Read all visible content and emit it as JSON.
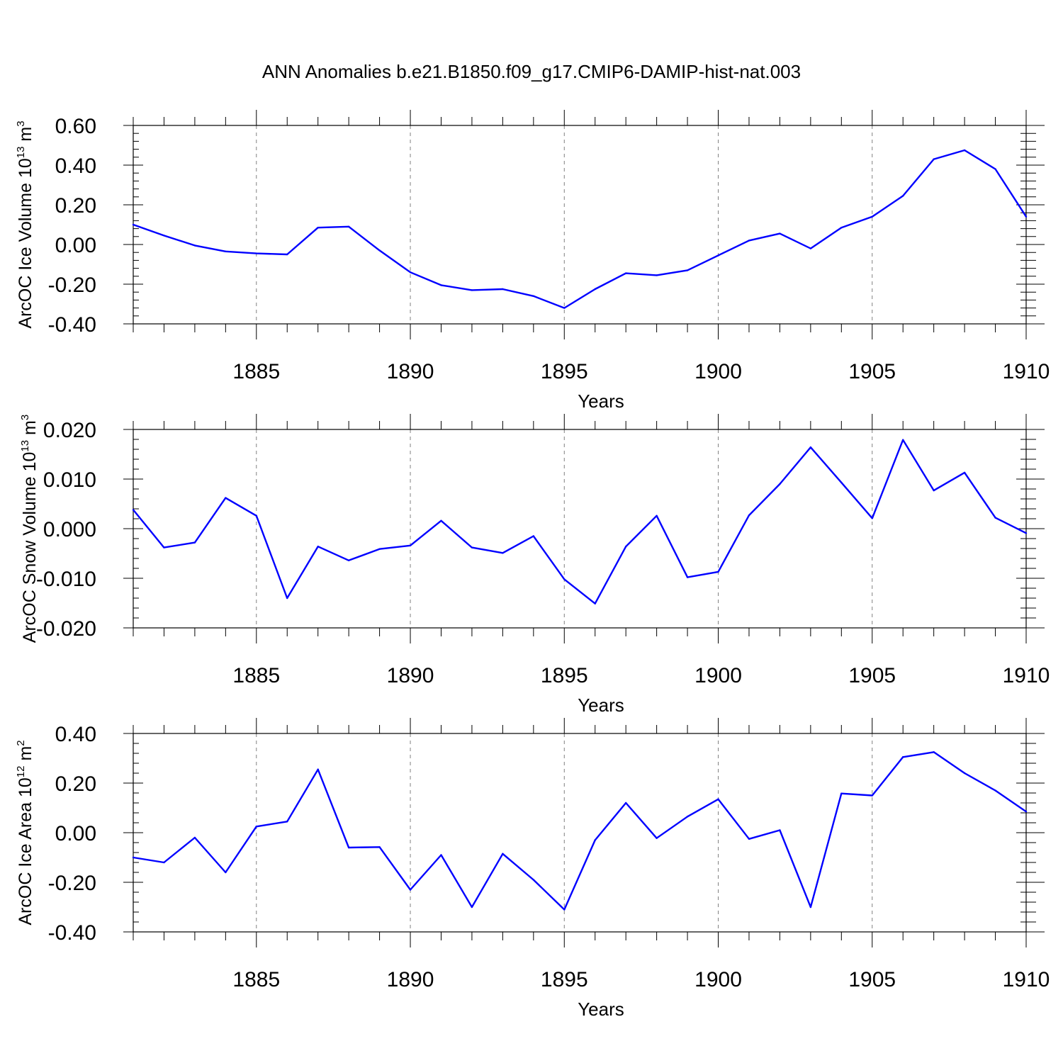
{
  "title": "ANN Anomalies b.e21.B1850.f09_g17.CMIP6-DAMIP-hist-nat.003",
  "chart_data": [
    {
      "type": "line",
      "xlabel": "Years",
      "ylabel": {
        "text": "ArcOC Ice Volume 10",
        "sup": "13",
        "unit": " m",
        "unit_sup": "3"
      },
      "xlim": [
        1881,
        1910
      ],
      "ylim": [
        -0.4,
        0.6
      ],
      "x_ticks": [
        1885,
        1890,
        1895,
        1900,
        1905,
        1910
      ],
      "x_tick_labels": [
        "1885",
        "1890",
        "1895",
        "1900",
        "1905",
        "1910"
      ],
      "y_ticks": [
        -0.4,
        -0.2,
        0.0,
        0.2,
        0.4,
        0.6
      ],
      "y_tick_labels": [
        "-0.40",
        "-0.20",
        "0.00",
        "0.20",
        "0.40",
        "0.60"
      ],
      "grid": "vertical dashed at major x ticks",
      "color": "#0000ff",
      "x": [
        1881,
        1882,
        1883,
        1884,
        1885,
        1886,
        1887,
        1888,
        1889,
        1890,
        1891,
        1892,
        1893,
        1894,
        1895,
        1896,
        1897,
        1898,
        1899,
        1900,
        1901,
        1902,
        1903,
        1904,
        1905,
        1906,
        1907,
        1908,
        1909,
        1910
      ],
      "y": [
        0.1,
        0.045,
        -0.005,
        -0.035,
        -0.045,
        -0.05,
        0.085,
        0.09,
        -0.03,
        -0.14,
        -0.205,
        -0.23,
        -0.225,
        -0.26,
        -0.32,
        -0.225,
        -0.145,
        -0.155,
        -0.13,
        -0.055,
        0.02,
        0.055,
        -0.02,
        0.085,
        0.14,
        0.245,
        0.43,
        0.475,
        0.38,
        0.14
      ]
    },
    {
      "type": "line",
      "xlabel": "Years",
      "ylabel": {
        "text": "ArcOC Snow Volume 10",
        "sup": "13",
        "unit": " m",
        "unit_sup": "3"
      },
      "xlim": [
        1881,
        1910
      ],
      "ylim": [
        -0.02,
        0.02
      ],
      "x_ticks": [
        1885,
        1890,
        1895,
        1900,
        1905,
        1910
      ],
      "x_tick_labels": [
        "1885",
        "1890",
        "1895",
        "1900",
        "1905",
        "1910"
      ],
      "y_ticks": [
        -0.02,
        -0.01,
        0.0,
        0.01,
        0.02
      ],
      "y_tick_labels": [
        "-0.020",
        "-0.010",
        "0.000",
        "0.010",
        "0.020"
      ],
      "grid": "vertical dashed at major x ticks",
      "color": "#0000ff",
      "x": [
        1881,
        1882,
        1883,
        1884,
        1885,
        1886,
        1887,
        1888,
        1889,
        1890,
        1891,
        1892,
        1893,
        1894,
        1895,
        1896,
        1897,
        1898,
        1899,
        1900,
        1901,
        1902,
        1903,
        1904,
        1905,
        1906,
        1907,
        1908,
        1909,
        1910
      ],
      "y": [
        0.0038,
        -0.0038,
        -0.0028,
        0.0062,
        0.0026,
        -0.014,
        -0.0036,
        -0.0064,
        -0.0041,
        -0.0034,
        0.0016,
        -0.0038,
        -0.0049,
        -0.0015,
        -0.0102,
        -0.0151,
        -0.0036,
        0.0026,
        -0.0098,
        -0.0087,
        0.0027,
        0.009,
        0.0164,
        0.0093,
        0.0021,
        0.0179,
        0.0077,
        0.0113,
        0.0022,
        -0.0009
      ]
    },
    {
      "type": "line",
      "xlabel": "Years",
      "ylabel": {
        "text": "ArcOC Ice Area 10",
        "sup": "12",
        "unit": " m",
        "unit_sup": "2"
      },
      "xlim": [
        1881,
        1910
      ],
      "ylim": [
        -0.4,
        0.4
      ],
      "x_ticks": [
        1885,
        1890,
        1895,
        1900,
        1905,
        1910
      ],
      "x_tick_labels": [
        "1885",
        "1890",
        "1895",
        "1900",
        "1905",
        "1910"
      ],
      "y_ticks": [
        -0.4,
        -0.2,
        0.0,
        0.2,
        0.4
      ],
      "y_tick_labels": [
        "-0.40",
        "-0.20",
        "0.00",
        "0.20",
        "0.40"
      ],
      "grid": "vertical dashed at major x ticks",
      "color": "#0000ff",
      "x": [
        1881,
        1882,
        1883,
        1884,
        1885,
        1886,
        1887,
        1888,
        1889,
        1890,
        1891,
        1892,
        1893,
        1894,
        1895,
        1896,
        1897,
        1898,
        1899,
        1900,
        1901,
        1902,
        1903,
        1904,
        1905,
        1906,
        1907,
        1908,
        1909,
        1910
      ],
      "y": [
        -0.1,
        -0.12,
        -0.02,
        -0.16,
        0.025,
        0.045,
        0.255,
        -0.06,
        -0.058,
        -0.23,
        -0.09,
        -0.3,
        -0.085,
        -0.19,
        -0.31,
        -0.03,
        0.12,
        -0.022,
        0.065,
        0.135,
        -0.025,
        0.01,
        -0.3,
        0.158,
        0.15,
        0.305,
        0.325,
        0.24,
        0.17,
        0.085
      ]
    }
  ]
}
